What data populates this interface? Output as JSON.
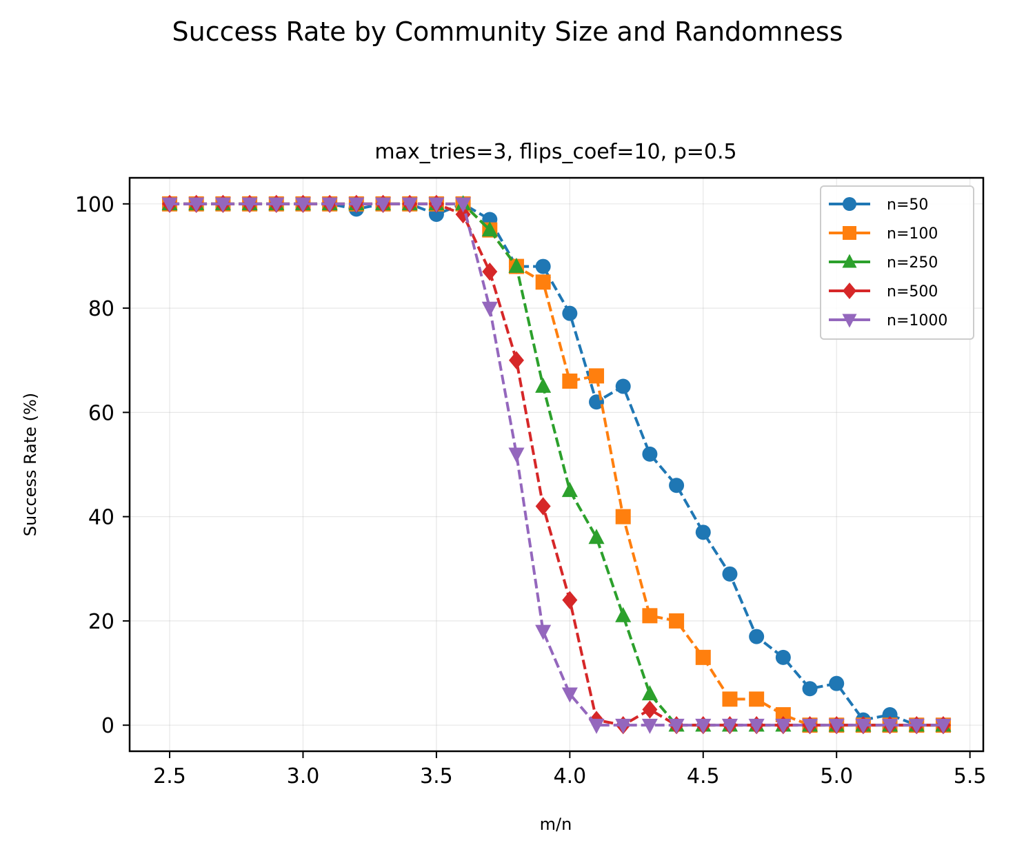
{
  "suptitle": "Success Rate by Community Size and Randomness",
  "chart_data": {
    "type": "line",
    "title": "max_tries=3, flips_coef=10, p=0.5",
    "xlabel": "m/n",
    "ylabel": "Success Rate (%)",
    "xlim": [
      2.35,
      5.55
    ],
    "ylim": [
      -5,
      105
    ],
    "xticks": [
      "2.5",
      "3.0",
      "3.5",
      "4.0",
      "4.5",
      "5.0",
      "5.5"
    ],
    "yticks": [
      "0",
      "20",
      "40",
      "60",
      "80",
      "100"
    ],
    "grid": true,
    "legend_position": "top-right",
    "x": [
      2.5,
      2.6,
      2.7,
      2.8,
      2.9,
      3.0,
      3.1,
      3.2,
      3.3,
      3.4,
      3.5,
      3.6,
      3.7,
      3.8,
      3.9,
      4.0,
      4.1,
      4.2,
      4.3,
      4.4,
      4.5,
      4.6,
      4.7,
      4.8,
      4.9,
      5.0,
      5.1,
      5.2,
      5.3,
      5.4
    ],
    "series": [
      {
        "name": "n=50",
        "color": "#1f77b4",
        "marker": "circle",
        "values": [
          100,
          100,
          100,
          100,
          100,
          100,
          100,
          99,
          100,
          100,
          98,
          100,
          97,
          88,
          88,
          79,
          62,
          65,
          52,
          46,
          37,
          29,
          17,
          13,
          7,
          8,
          1,
          2,
          0,
          0
        ]
      },
      {
        "name": "n=100",
        "color": "#ff7f0e",
        "marker": "square",
        "values": [
          100,
          100,
          100,
          100,
          100,
          100,
          100,
          100,
          100,
          100,
          100,
          100,
          95,
          88,
          85,
          66,
          67,
          40,
          21,
          20,
          13,
          5,
          5,
          2,
          0,
          0,
          0,
          0,
          0,
          0
        ]
      },
      {
        "name": "n=250",
        "color": "#2ca02c",
        "marker": "triangle-up",
        "values": [
          100,
          100,
          100,
          100,
          100,
          100,
          100,
          100,
          100,
          100,
          100,
          100,
          95,
          88,
          65,
          45,
          36,
          21,
          6,
          0,
          0,
          0,
          0,
          0,
          0,
          0,
          0,
          0,
          0,
          0
        ]
      },
      {
        "name": "n=500",
        "color": "#d62728",
        "marker": "diamond",
        "values": [
          100,
          100,
          100,
          100,
          100,
          100,
          100,
          100,
          100,
          100,
          100,
          98,
          87,
          70,
          42,
          24,
          1,
          0,
          3,
          0,
          0,
          0,
          0,
          0,
          0,
          0,
          0,
          0,
          0,
          0
        ]
      },
      {
        "name": "n=1000",
        "color": "#9467bd",
        "marker": "triangle-down",
        "values": [
          100,
          100,
          100,
          100,
          100,
          100,
          100,
          100,
          100,
          100,
          100,
          100,
          80,
          52,
          18,
          6,
          0,
          0,
          0,
          0,
          0,
          0,
          0,
          0,
          0,
          0,
          0,
          0,
          0,
          0
        ]
      }
    ]
  }
}
